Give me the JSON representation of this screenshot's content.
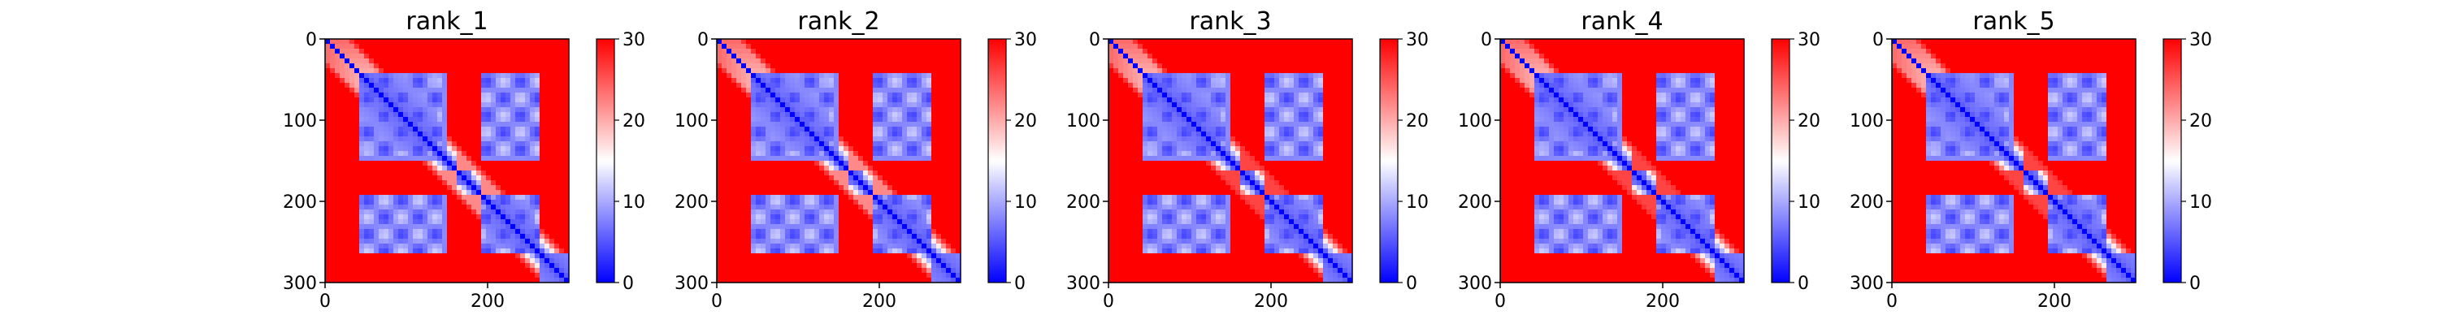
{
  "colors": {
    "low": "#0000ff",
    "mid": "#ffffff",
    "high": "#ff0000",
    "axis": "#000000",
    "background": "#ffffff"
  },
  "colorbar": {
    "colormap": "bwr",
    "ticks": [
      "0",
      "10",
      "20",
      "30"
    ],
    "range": [
      0,
      30
    ]
  },
  "chart_data": [
    {
      "type": "heatmap",
      "title": "rank_1",
      "matrix_size": 300,
      "xticks": [
        "0",
        "200"
      ],
      "yticks": [
        "0",
        "100",
        "200",
        "300"
      ],
      "xlim": [
        0,
        300
      ],
      "ylim": [
        300,
        0
      ],
      "zlim": [
        0,
        30
      ],
      "colormap": "bwr",
      "domain_blocks": [
        [
          0,
          30
        ],
        [
          40,
          140
        ],
        [
          160,
          180
        ],
        [
          200,
          260
        ],
        [
          265,
          300
        ]
      ],
      "notes_visible": "high values near edges/top rows; low-value domains around 50-90, 120-140 and 220-260"
    },
    {
      "type": "heatmap",
      "title": "rank_2",
      "matrix_size": 300,
      "xticks": [
        "0",
        "200"
      ],
      "yticks": [
        "0",
        "100",
        "200",
        "300"
      ],
      "xlim": [
        0,
        300
      ],
      "ylim": [
        300,
        0
      ],
      "zlim": [
        0,
        30
      ],
      "colormap": "bwr",
      "domain_blocks": [
        [
          0,
          30
        ],
        [
          40,
          140
        ],
        [
          160,
          180
        ],
        [
          200,
          260
        ],
        [
          265,
          300
        ]
      ]
    },
    {
      "type": "heatmap",
      "title": "rank_3",
      "matrix_size": 300,
      "xticks": [
        "0",
        "200"
      ],
      "yticks": [
        "0",
        "100",
        "200",
        "300"
      ],
      "xlim": [
        0,
        300
      ],
      "ylim": [
        300,
        0
      ],
      "zlim": [
        0,
        30
      ],
      "colormap": "bwr",
      "domain_blocks": [
        [
          0,
          30
        ],
        [
          40,
          140
        ],
        [
          160,
          180
        ],
        [
          200,
          260
        ],
        [
          265,
          300
        ]
      ]
    },
    {
      "type": "heatmap",
      "title": "rank_4",
      "matrix_size": 300,
      "xticks": [
        "0",
        "200"
      ],
      "yticks": [
        "0",
        "100",
        "200",
        "300"
      ],
      "xlim": [
        0,
        300
      ],
      "ylim": [
        300,
        0
      ],
      "zlim": [
        0,
        30
      ],
      "colormap": "bwr",
      "domain_blocks": [
        [
          0,
          30
        ],
        [
          40,
          140
        ],
        [
          160,
          180
        ],
        [
          200,
          260
        ],
        [
          265,
          300
        ]
      ]
    },
    {
      "type": "heatmap",
      "title": "rank_5",
      "matrix_size": 300,
      "xticks": [
        "0",
        "200"
      ],
      "yticks": [
        "0",
        "100",
        "200",
        "300"
      ],
      "xlim": [
        0,
        300
      ],
      "ylim": [
        300,
        0
      ],
      "zlim": [
        0,
        30
      ],
      "colormap": "bwr",
      "domain_blocks": [
        [
          0,
          30
        ],
        [
          40,
          140
        ],
        [
          160,
          180
        ],
        [
          200,
          260
        ],
        [
          265,
          300
        ]
      ]
    }
  ]
}
